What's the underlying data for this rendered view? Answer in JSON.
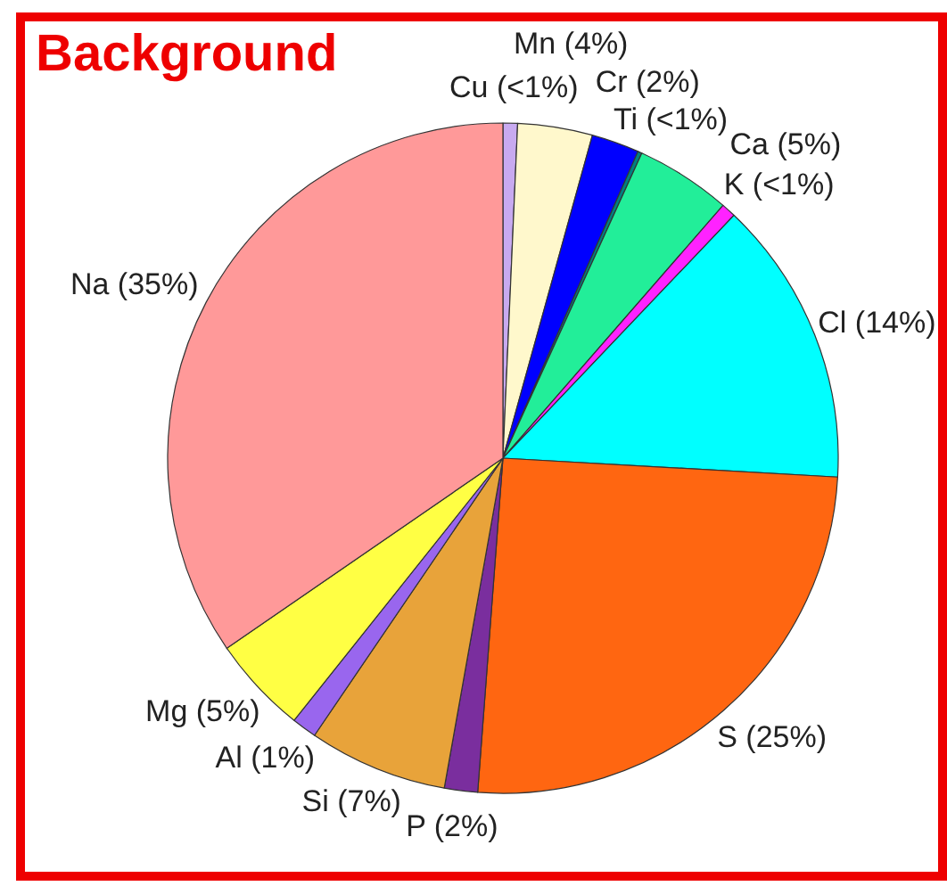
{
  "chart_data": {
    "type": "pie",
    "title": "Background",
    "categories": [
      "Cu",
      "Mn",
      "Cr",
      "Ti",
      "Ca",
      "K",
      "Cl",
      "S",
      "P",
      "Si",
      "Al",
      "Mg",
      "Na"
    ],
    "values": [
      0.7,
      3.6,
      2.3,
      0.2,
      4.6,
      0.7,
      13.8,
      25.3,
      1.6,
      6.7,
      1.2,
      4.7,
      34.6
    ],
    "value_labels": [
      "(<1%)",
      "(4%)",
      "(2%)",
      "(<1%)",
      "(5%)",
      "(<1%)",
      "(14%)",
      "(25%)",
      "(2%)",
      "(7%)",
      "(1%)",
      "(5%)",
      "(35%)"
    ],
    "colors": [
      "#c8aaf0",
      "#fff8cc",
      "#0000ff",
      "#008080",
      "#22ee99",
      "#ff22ff",
      "#00ffff",
      "#ff6611",
      "#7a2e9e",
      "#e8a33a",
      "#9966ee",
      "#ffff44",
      "#ff9999"
    ],
    "legend": false
  }
}
